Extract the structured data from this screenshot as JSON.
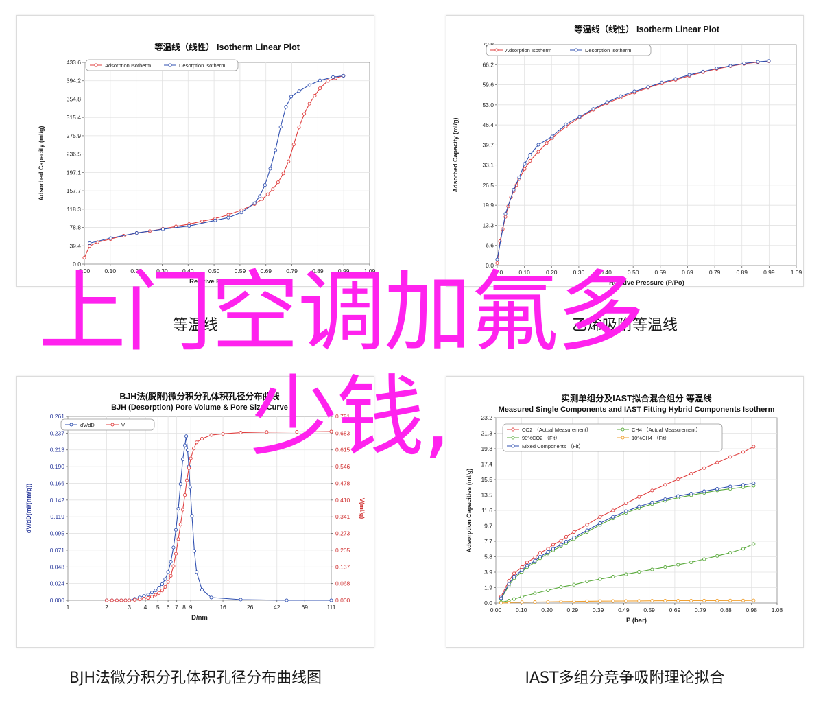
{
  "charts": [
    {
      "type": "line",
      "title": "等温线（线性） Isotherm Linear Plot",
      "xlabel": "Relative Pressure (P/Po)",
      "ylabel": "Adsorbed Capacity (ml/g)",
      "x_ticks": [
        "0.00",
        "0.10",
        "0.20",
        "0.30",
        "0.40",
        "0.50",
        "0.59",
        "0.69",
        "0.79",
        "0.89",
        "0.99",
        "1.09"
      ],
      "y_ticks": [
        "0.0",
        "39.4",
        "78.8",
        "118.3",
        "157.7",
        "197.1",
        "236.5",
        "275.9",
        "315.4",
        "354.8",
        "394.2",
        "433.6"
      ],
      "xlim": [
        0,
        1.09
      ],
      "ylim": [
        0,
        433.6
      ],
      "grid": true,
      "legend_position": "top-left",
      "series": [
        {
          "name": "Adsorption Isotherm",
          "color": "#e04040",
          "x": [
            0.0,
            0.02,
            0.05,
            0.1,
            0.15,
            0.2,
            0.25,
            0.3,
            0.35,
            0.4,
            0.45,
            0.5,
            0.55,
            0.6,
            0.65,
            0.68,
            0.7,
            0.72,
            0.74,
            0.76,
            0.78,
            0.8,
            0.82,
            0.84,
            0.86,
            0.88,
            0.9,
            0.93,
            0.96,
            0.99
          ],
          "y": [
            14,
            39,
            47,
            54,
            61,
            67,
            71,
            76,
            81,
            86,
            92,
            98,
            106,
            116,
            129,
            140,
            150,
            161,
            176,
            195,
            221,
            257,
            294,
            323,
            345,
            362,
            378,
            394,
            400,
            405
          ]
        },
        {
          "name": "Desorption Isotherm",
          "color": "#3050b0",
          "x": [
            0.02,
            0.1,
            0.2,
            0.3,
            0.4,
            0.5,
            0.55,
            0.6,
            0.65,
            0.67,
            0.69,
            0.71,
            0.73,
            0.75,
            0.77,
            0.79,
            0.82,
            0.86,
            0.9,
            0.95,
            0.99
          ],
          "y": [
            45,
            56,
            67,
            75,
            82,
            94,
            100,
            111,
            131,
            146,
            170,
            205,
            245,
            295,
            338,
            360,
            372,
            385,
            395,
            402,
            405
          ]
        }
      ],
      "caption": "等温线"
    },
    {
      "type": "line",
      "title": "等温线（线性） Isotherm Linear Plot",
      "xlabel": "Relative Pressure (P/Po)",
      "ylabel": "Adsorbed Capacity (ml/g)",
      "x_ticks": [
        "0.00",
        "0.10",
        "0.20",
        "0.30",
        "0.40",
        "0.50",
        "0.59",
        "0.69",
        "0.79",
        "0.89",
        "0.99",
        "1.09"
      ],
      "y_ticks": [
        "0.0",
        "6.6",
        "13.3",
        "19.9",
        "26.5",
        "33.1",
        "39.7",
        "46.4",
        "53.0",
        "59.6",
        "66.2",
        "72.8"
      ],
      "xlim": [
        0,
        1.09
      ],
      "ylim": [
        0,
        72.8
      ],
      "grid": true,
      "legend_position": "top-left",
      "series": [
        {
          "name": "Adsorption Isotherm",
          "color": "#e04040",
          "x": [
            0.0,
            0.01,
            0.02,
            0.03,
            0.04,
            0.05,
            0.06,
            0.07,
            0.08,
            0.1,
            0.12,
            0.15,
            0.18,
            0.2,
            0.25,
            0.3,
            0.35,
            0.4,
            0.45,
            0.5,
            0.55,
            0.6,
            0.65,
            0.7,
            0.75,
            0.8,
            0.85,
            0.9,
            0.95,
            0.99
          ],
          "y": [
            0.8,
            8,
            12,
            16,
            19.5,
            22.5,
            24.5,
            26.5,
            28.5,
            31.8,
            34.5,
            37.5,
            40.3,
            42,
            45.8,
            48.7,
            51.3,
            53.5,
            55.3,
            57,
            58.6,
            60,
            61.2,
            62.5,
            63.7,
            64.8,
            65.7,
            66.5,
            67,
            67.3
          ]
        },
        {
          "name": "Desorption Isotherm",
          "color": "#3050b0",
          "x": [
            0.0,
            0.03,
            0.06,
            0.08,
            0.1,
            0.12,
            0.15,
            0.2,
            0.25,
            0.3,
            0.35,
            0.4,
            0.45,
            0.5,
            0.55,
            0.6,
            0.65,
            0.7,
            0.75,
            0.8,
            0.85,
            0.9,
            0.95,
            0.99
          ],
          "y": [
            2,
            17,
            25,
            29,
            33.5,
            36.5,
            39.8,
            42.5,
            46.5,
            49,
            51.6,
            53.8,
            55.8,
            57.4,
            58.8,
            60.3,
            61.5,
            62.8,
            63.9,
            65,
            65.8,
            66.6,
            67.1,
            67.4
          ]
        }
      ],
      "caption": "乙烯吸附等温线"
    },
    {
      "type": "line",
      "title": "BJH法(脱附)微分积分孔体积孔径分布曲线",
      "subtitle": "BJH (Desorption) Pore Volume & Pore Size Curve",
      "xlabel": "D/nm",
      "ylabel": "dV/dD(ml/(nm/g))",
      "y2label": "V(ml/g)",
      "x_ticks": [
        "1",
        "2",
        "3",
        "4",
        "5",
        "6",
        "7",
        "8",
        "9",
        "16",
        "26",
        "42",
        "69",
        "111"
      ],
      "x_scale": "log",
      "xlim": [
        1,
        111
      ],
      "y_ticks": [
        "0.000",
        "0.024",
        "0.048",
        "0.071",
        "0.095",
        "0.119",
        "0.142",
        "0.166",
        "0.190",
        "0.213",
        "0.237",
        "0.261"
      ],
      "ylim": [
        0,
        0.261
      ],
      "y2_ticks": [
        "0.000",
        "0.068",
        "0.137",
        "0.205",
        "0.273",
        "0.341",
        "0.410",
        "0.478",
        "0.546",
        "0.615",
        "0.683",
        "0.751"
      ],
      "y2lim": [
        0,
        0.751
      ],
      "grid": true,
      "legend_position": "top-left",
      "series": [
        {
          "name": "dV/dD",
          "color": "#3050b0",
          "axis": "left",
          "x": [
            2,
            2.2,
            2.4,
            2.6,
            2.8,
            3,
            3.3,
            3.6,
            3.9,
            4.2,
            4.5,
            4.8,
            5.1,
            5.4,
            5.7,
            6,
            6.3,
            6.6,
            6.9,
            7.2,
            7.5,
            7.8,
            8.1,
            8.3,
            8.5,
            8.7,
            8.9,
            9.2,
            9.6,
            10,
            11,
            13,
            22,
            50,
            111
          ],
          "y": [
            0,
            0,
            0,
            0,
            0,
            0,
            0.002,
            0.004,
            0.006,
            0.008,
            0.011,
            0.014,
            0.018,
            0.023,
            0.03,
            0.04,
            0.055,
            0.075,
            0.1,
            0.13,
            0.165,
            0.2,
            0.22,
            0.233,
            0.213,
            0.19,
            0.16,
            0.12,
            0.07,
            0.04,
            0.015,
            0.004,
            0.001,
            0,
            0
          ]
        },
        {
          "name": "V",
          "color": "#e04040",
          "axis": "right",
          "x": [
            2,
            2.2,
            2.4,
            2.6,
            2.8,
            3,
            3.3,
            3.6,
            3.9,
            4.2,
            4.5,
            4.8,
            5.1,
            5.4,
            5.7,
            6,
            6.3,
            6.6,
            6.9,
            7.2,
            7.5,
            7.8,
            8.1,
            8.4,
            8.7,
            9,
            9.5,
            10,
            11,
            13,
            16,
            22,
            35,
            60,
            111
          ],
          "y": [
            0,
            0,
            0,
            0,
            0,
            0,
            0.002,
            0.004,
            0.007,
            0.01,
            0.015,
            0.022,
            0.03,
            0.04,
            0.055,
            0.075,
            0.1,
            0.14,
            0.19,
            0.25,
            0.31,
            0.37,
            0.43,
            0.49,
            0.54,
            0.58,
            0.62,
            0.645,
            0.66,
            0.675,
            0.68,
            0.685,
            0.687,
            0.688,
            0.689
          ]
        }
      ],
      "caption": "BJH法微分积分孔体积孔径分布曲线图"
    },
    {
      "type": "line",
      "title": "实测单组分及IAST拟合混合组分 等温线",
      "subtitle": "Measured Single Components and IAST Fitting Hybrid Components Isotherm",
      "xlabel": "P (bar)",
      "ylabel": "Adsorption Capacities (ml/g)",
      "x_ticks": [
        "0.00",
        "0.10",
        "0.20",
        "0.29",
        "0.39",
        "0.49",
        "0.59",
        "0.69",
        "0.79",
        "0.88",
        "0.98",
        "1.08"
      ],
      "y_ticks": [
        "0.0",
        "1.9",
        "3.9",
        "5.8",
        "7.7",
        "9.7",
        "11.6",
        "13.5",
        "15.5",
        "17.4",
        "19.3",
        "21.3",
        "23.2"
      ],
      "xlim": [
        0,
        1.08
      ],
      "ylim": [
        0,
        23.2
      ],
      "grid": true,
      "legend_position": "top-left",
      "series": [
        {
          "name": "CO2 （Actual Measurement）",
          "color": "#e04040",
          "x": [
            0.02,
            0.05,
            0.07,
            0.1,
            0.12,
            0.15,
            0.17,
            0.2,
            0.22,
            0.25,
            0.27,
            0.3,
            0.35,
            0.4,
            0.45,
            0.5,
            0.55,
            0.6,
            0.65,
            0.7,
            0.75,
            0.8,
            0.85,
            0.9,
            0.95,
            0.99
          ],
          "y": [
            0.8,
            2.8,
            3.7,
            4.5,
            5.1,
            5.7,
            6.3,
            6.8,
            7.3,
            7.8,
            8.3,
            8.9,
            9.8,
            10.8,
            11.6,
            12.5,
            13.3,
            14.1,
            14.8,
            15.5,
            16.2,
            16.9,
            17.6,
            18.3,
            18.9,
            19.6
          ]
        },
        {
          "name": "CH4 （Actual Measurement）",
          "color": "#5aaa3c",
          "x": [
            0.02,
            0.05,
            0.07,
            0.1,
            0.15,
            0.2,
            0.25,
            0.3,
            0.35,
            0.4,
            0.45,
            0.5,
            0.55,
            0.6,
            0.65,
            0.7,
            0.75,
            0.8,
            0.85,
            0.9,
            0.95,
            0.99
          ],
          "y": [
            0.1,
            0.3,
            0.5,
            0.8,
            1.2,
            1.6,
            2.0,
            2.3,
            2.7,
            3.0,
            3.3,
            3.6,
            3.9,
            4.2,
            4.5,
            4.8,
            5.1,
            5.5,
            5.9,
            6.3,
            6.8,
            7.4
          ]
        },
        {
          "name": "90%CO2 （Fit）",
          "color": "#5aaa3c",
          "x": [
            0.02,
            0.05,
            0.07,
            0.1,
            0.12,
            0.15,
            0.17,
            0.2,
            0.22,
            0.25,
            0.27,
            0.3,
            0.35,
            0.4,
            0.45,
            0.5,
            0.55,
            0.6,
            0.65,
            0.7,
            0.75,
            0.8,
            0.85,
            0.9,
            0.95,
            0.99
          ],
          "y": [
            0.5,
            2.2,
            3.1,
            3.9,
            4.5,
            5.1,
            5.6,
            6.2,
            6.6,
            7.1,
            7.5,
            8.0,
            8.9,
            9.8,
            10.6,
            11.3,
            11.9,
            12.4,
            12.8,
            13.2,
            13.5,
            13.8,
            14.1,
            14.3,
            14.5,
            14.7
          ]
        },
        {
          "name": "10%CH4 （Fit）",
          "color": "#f0a030",
          "x": [
            0.02,
            0.05,
            0.1,
            0.15,
            0.2,
            0.25,
            0.3,
            0.35,
            0.4,
            0.45,
            0.5,
            0.55,
            0.6,
            0.65,
            0.7,
            0.75,
            0.8,
            0.85,
            0.9,
            0.95,
            0.99
          ],
          "y": [
            0.0,
            0.05,
            0.1,
            0.12,
            0.15,
            0.18,
            0.2,
            0.22,
            0.24,
            0.25,
            0.26,
            0.27,
            0.28,
            0.29,
            0.3,
            0.3,
            0.31,
            0.31,
            0.32,
            0.32,
            0.33
          ]
        },
        {
          "name": "Mixed Components （Fit）",
          "color": "#3050b0",
          "x": [
            0.02,
            0.05,
            0.07,
            0.1,
            0.12,
            0.15,
            0.17,
            0.2,
            0.22,
            0.25,
            0.27,
            0.3,
            0.35,
            0.4,
            0.45,
            0.5,
            0.55,
            0.6,
            0.65,
            0.7,
            0.75,
            0.8,
            0.85,
            0.9,
            0.95,
            0.99
          ],
          "y": [
            0.6,
            2.4,
            3.3,
            4.1,
            4.7,
            5.3,
            5.8,
            6.4,
            6.8,
            7.3,
            7.7,
            8.2,
            9.1,
            10.0,
            10.8,
            11.5,
            12.1,
            12.6,
            13.0,
            13.4,
            13.7,
            14.0,
            14.3,
            14.6,
            14.8,
            15.0
          ]
        }
      ],
      "caption": "IAST多组分竞争吸附理论拟合"
    }
  ],
  "overlay": {
    "line1": "上门空调加氟多",
    "line2": "少钱,",
    "color": "#ff22ee"
  },
  "chart_data": [
    {
      "type": "line",
      "title": "等温线（线性） Isotherm Linear Plot",
      "xlabel": "Relative Pressure (P/Po)",
      "ylabel": "Adsorbed Capacity (ml/g)",
      "xlim": [
        0,
        1.09
      ],
      "ylim": [
        0,
        433.6
      ],
      "series_names": [
        "Adsorption Isotherm",
        "Desorption Isotherm"
      ]
    },
    {
      "type": "line",
      "title": "等温线（线性） Isotherm Linear Plot",
      "xlabel": "Relative Pressure (P/Po)",
      "ylabel": "Adsorbed Capacity (ml/g)",
      "xlim": [
        0,
        1.09
      ],
      "ylim": [
        0,
        72.8
      ],
      "series_names": [
        "Adsorption Isotherm",
        "Desorption Isotherm"
      ]
    },
    {
      "type": "line",
      "title": "BJH法(脱附)微分积分孔体积孔径分布曲线",
      "xlabel": "D/nm",
      "ylabel": "dV/dD(ml/(nm/g))",
      "xlim": [
        1,
        111
      ],
      "ylim": [
        0,
        0.261
      ],
      "series_names": [
        "dV/dD",
        "V"
      ]
    },
    {
      "type": "line",
      "title": "实测单组分及IAST拟合混合组分 等温线",
      "xlabel": "P (bar)",
      "ylabel": "Adsorption Capacities (ml/g)",
      "xlim": [
        0,
        1.08
      ],
      "ylim": [
        0,
        23.2
      ],
      "series_names": [
        "CO2 （Actual Measurement）",
        "CH4 （Actual Measurement）",
        "90%CO2 （Fit）",
        "10%CH4 （Fit）",
        "Mixed Components （Fit）"
      ]
    }
  ]
}
